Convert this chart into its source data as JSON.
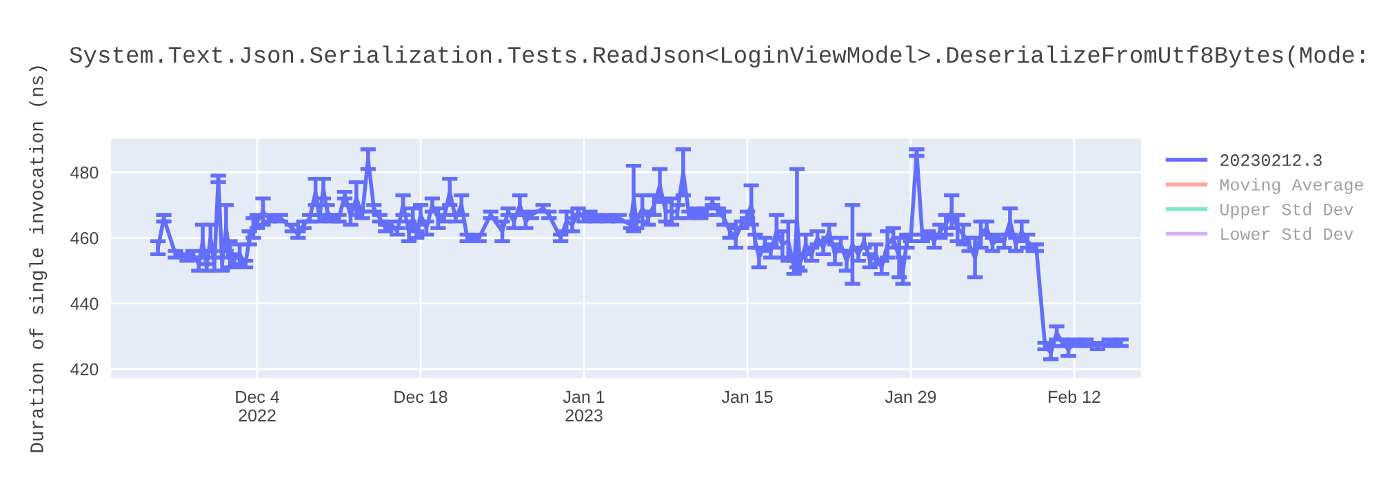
{
  "chart_data": {
    "type": "line",
    "title": "System.Text.Json.Serialization.Tests.ReadJson<LoginViewModel>.DeserializeFromUtf8Bytes(Mode:",
    "ylabel": "Duration of single invocation (ns)",
    "x": [
      "2022-11-25T12:00",
      "2022-11-26T00:00",
      "2022-11-27T00:00",
      "2022-11-28T00:00",
      "2022-11-28T12:00",
      "2022-11-29T00:00",
      "2022-11-29T08:00",
      "2022-11-29T16:00",
      "2022-11-30T00:00",
      "2022-11-30T08:00",
      "2022-11-30T16:00",
      "2022-12-01T00:00",
      "2022-12-01T08:00",
      "2022-12-01T16:00",
      "2022-12-02T00:00",
      "2022-12-02T12:00",
      "2022-12-03T00:00",
      "2022-12-03T08:00",
      "2022-12-03T16:00",
      "2022-12-04T00:00",
      "2022-12-04T12:00",
      "2022-12-05T00:00",
      "2022-12-06T00:00",
      "2022-12-07T00:00",
      "2022-12-07T12:00",
      "2022-12-08T00:00",
      "2022-12-08T12:00",
      "2022-12-09T00:00",
      "2022-12-09T08:00",
      "2022-12-09T16:00",
      "2022-12-10T00:00",
      "2022-12-10T12:00",
      "2022-12-11T00:00",
      "2022-12-11T12:00",
      "2022-12-12T00:00",
      "2022-12-12T12:00",
      "2022-12-13T00:00",
      "2022-12-13T12:00",
      "2022-12-14T00:00",
      "2022-12-14T12:00",
      "2022-12-15T00:00",
      "2022-12-15T12:00",
      "2022-12-16T00:00",
      "2022-12-16T12:00",
      "2022-12-17T00:00",
      "2022-12-17T08:00",
      "2022-12-17T16:00",
      "2022-12-18T00:00",
      "2022-12-18T12:00",
      "2022-12-19T00:00",
      "2022-12-19T12:00",
      "2022-12-20T00:00",
      "2022-12-20T12:00",
      "2022-12-21T00:00",
      "2022-12-21T12:00",
      "2022-12-22T00:00",
      "2022-12-23T00:00",
      "2022-12-24T00:00",
      "2022-12-25T00:00",
      "2022-12-25T12:00",
      "2022-12-26T00:00",
      "2022-12-26T12:00",
      "2022-12-27T00:00",
      "2022-12-27T12:00",
      "2022-12-28T12:00",
      "2022-12-29T00:00",
      "2022-12-30T00:00",
      "2022-12-30T12:00",
      "2022-12-31T00:00",
      "2022-12-31T12:00",
      "2023-01-01T00:00",
      "2023-01-01T12:00",
      "2023-01-02T00:00",
      "2023-01-03T00:00",
      "2023-01-04T00:00",
      "2023-01-05T00:00",
      "2023-01-05T06:00",
      "2023-01-05T12:00",
      "2023-01-06T00:00",
      "2023-01-06T12:00",
      "2023-01-07T00:00",
      "2023-01-07T12:00",
      "2023-01-08T00:00",
      "2023-01-08T12:00",
      "2023-01-09T00:00",
      "2023-01-09T12:00",
      "2023-01-10T00:00",
      "2023-01-10T12:00",
      "2023-01-11T00:00",
      "2023-01-11T12:00",
      "2023-01-12T00:00",
      "2023-01-12T12:00",
      "2023-01-13T00:00",
      "2023-01-13T12:00",
      "2023-01-14T00:00",
      "2023-01-14T12:00",
      "2023-01-15T00:00",
      "2023-01-15T08:00",
      "2023-01-15T16:00",
      "2023-01-16T00:00",
      "2023-01-16T12:00",
      "2023-01-17T00:00",
      "2023-01-17T12:00",
      "2023-01-18T00:00",
      "2023-01-18T12:00",
      "2023-01-19T00:00",
      "2023-01-19T06:00",
      "2023-01-19T12:00",
      "2023-01-20T00:00",
      "2023-01-20T12:00",
      "2023-01-21T00:00",
      "2023-01-21T12:00",
      "2023-01-22T00:00",
      "2023-01-22T12:00",
      "2023-01-23T00:00",
      "2023-01-23T12:00",
      "2023-01-24T00:00",
      "2023-01-24T12:00",
      "2023-01-25T00:00",
      "2023-01-25T12:00",
      "2023-01-26T00:00",
      "2023-01-26T12:00",
      "2023-01-27T00:00",
      "2023-01-27T12:00",
      "2023-01-28T00:00",
      "2023-01-28T08:00",
      "2023-01-28T16:00",
      "2023-01-29T00:00",
      "2023-01-29T12:00",
      "2023-01-30T00:00",
      "2023-01-30T12:00",
      "2023-01-31T00:00",
      "2023-01-31T12:00",
      "2023-02-01T00:00",
      "2023-02-01T12:00",
      "2023-02-02T00:00",
      "2023-02-02T12:00",
      "2023-02-03T00:00",
      "2023-02-03T12:00",
      "2023-02-04T00:00",
      "2023-02-04T12:00",
      "2023-02-05T00:00",
      "2023-02-05T12:00",
      "2023-02-06T00:00",
      "2023-02-06T12:00",
      "2023-02-07T00:00",
      "2023-02-07T12:00",
      "2023-02-08T00:00",
      "2023-02-08T12:00",
      "2023-02-08T18:00",
      "2023-02-09T12:00",
      "2023-02-10T00:00",
      "2023-02-10T12:00",
      "2023-02-11T00:00",
      "2023-02-11T12:00",
      "2023-02-12T00:00",
      "2023-02-13T00:00",
      "2023-02-14T00:00",
      "2023-02-15T00:00",
      "2023-02-16T00:00"
    ],
    "series": [
      {
        "name": "20230212.3",
        "color": "#636efa",
        "values": [
          457,
          466,
          455,
          454,
          455,
          452,
          459,
          451,
          460,
          452,
          478,
          452,
          463,
          455,
          453,
          455,
          452,
          460,
          463,
          465,
          468,
          466,
          466,
          463,
          461,
          464,
          466,
          474,
          466,
          475,
          468,
          466,
          466,
          473,
          467,
          472,
          467,
          484,
          469,
          466,
          463,
          464,
          462,
          470,
          462,
          466,
          461,
          467,
          463,
          470,
          466,
          466,
          474,
          466,
          470,
          460,
          460,
          467,
          462,
          468,
          465,
          470,
          465,
          467,
          469,
          467,
          460,
          465,
          464,
          468,
          466,
          467,
          466,
          466,
          466,
          464,
          472,
          465,
          469,
          466,
          470,
          476,
          468,
          468,
          468,
          480,
          467,
          468,
          467,
          468,
          471,
          468,
          466,
          462,
          460,
          464,
          467,
          470,
          459,
          454,
          458,
          456,
          462,
          458,
          459,
          451,
          466,
          452,
          458,
          455,
          460,
          457,
          462,
          455,
          458,
          453,
          458,
          455,
          459,
          453,
          455,
          451,
          458,
          460,
          454,
          450,
          459,
          460,
          486,
          460,
          461,
          459,
          462,
          464,
          468,
          463,
          461,
          458,
          454,
          461,
          463,
          458,
          460,
          459,
          465,
          458,
          462,
          459,
          457,
          457,
          427,
          425,
          431,
          428,
          426,
          428,
          428,
          427,
          428,
          428
        ],
        "errors": [
          2,
          1,
          1,
          1,
          1,
          2,
          5,
          1,
          4,
          2,
          1,
          2,
          7,
          4,
          2,
          3,
          1,
          2,
          3,
          2,
          4,
          1,
          1,
          1,
          1,
          1,
          1,
          4,
          1,
          3,
          2,
          1,
          1,
          1,
          3,
          5,
          1,
          3,
          1,
          1,
          1,
          1,
          1,
          3,
          3,
          3,
          1,
          3,
          2,
          2,
          3,
          1,
          4,
          1,
          3,
          1,
          1,
          1,
          3,
          1,
          2,
          3,
          2,
          1,
          1,
          1,
          1,
          3,
          2,
          1,
          1,
          1,
          1,
          1,
          1,
          1,
          10,
          2,
          4,
          2,
          3,
          5,
          3,
          4,
          2,
          7,
          1,
          1,
          1,
          1,
          1,
          1,
          2,
          2,
          3,
          1,
          1,
          6,
          2,
          3,
          2,
          2,
          5,
          4,
          6,
          2,
          15,
          2,
          3,
          2,
          2,
          2,
          2,
          3,
          2,
          3,
          12,
          2,
          2,
          2,
          3,
          2,
          4,
          3,
          6,
          4,
          2,
          1,
          1,
          1,
          1,
          2,
          2,
          3,
          5,
          4,
          3,
          2,
          6,
          4,
          2,
          2,
          1,
          2,
          4,
          2,
          3,
          2,
          1,
          1,
          1,
          2,
          2,
          1,
          2,
          1,
          1,
          1,
          1,
          1
        ]
      },
      {
        "name": "Moving Average",
        "color": "#ef553b",
        "values": [
          null,
          null,
          null,
          null,
          null,
          null,
          null,
          null,
          null,
          null,
          null,
          null,
          null,
          null,
          null,
          null,
          null,
          null,
          null,
          null,
          null,
          null,
          null,
          null,
          null,
          null,
          null,
          null,
          null,
          null,
          null,
          null,
          null,
          null,
          null,
          null,
          null,
          null,
          null,
          null,
          null,
          null,
          null,
          null,
          null,
          null,
          null,
          null,
          null,
          null,
          null,
          null,
          null,
          null,
          null,
          null,
          null,
          null,
          null,
          null,
          null,
          null,
          null,
          null,
          null,
          null,
          null,
          null,
          null,
          null,
          null,
          null,
          null,
          null,
          null,
          null,
          null,
          null,
          null,
          null,
          null,
          null,
          null,
          null,
          null,
          null,
          null,
          null,
          null,
          null,
          null,
          null,
          null,
          null,
          null,
          null,
          null,
          null,
          null,
          null,
          null,
          null,
          null,
          null,
          null,
          null,
          null,
          null,
          null,
          null,
          null,
          null,
          null,
          null,
          null,
          null,
          null,
          null,
          null,
          null,
          null,
          null,
          null,
          null,
          null,
          null,
          null,
          null,
          null,
          null,
          null,
          null,
          null,
          null,
          null,
          null,
          null,
          null,
          null,
          null,
          null,
          null,
          null,
          null,
          null,
          null,
          null,
          null,
          null,
          null,
          null,
          null,
          null,
          null,
          null,
          null,
          null,
          null,
          null,
          null
        ]
      },
      {
        "name": "Upper Std Dev",
        "color": "#00cc96",
        "values": [
          null,
          null,
          null,
          null,
          null,
          null,
          null,
          null,
          null,
          null,
          null,
          null,
          null,
          null,
          null,
          null,
          null,
          null,
          null,
          null,
          null,
          null,
          null,
          null,
          null,
          null,
          null,
          null,
          null,
          null,
          null,
          null,
          null,
          null,
          null,
          null,
          null,
          null,
          null,
          null,
          null,
          null,
          null,
          null,
          null,
          null,
          null,
          null,
          null,
          null,
          null,
          null,
          null,
          null,
          null,
          null,
          null,
          null,
          null,
          null,
          null,
          null,
          null,
          null,
          null,
          null,
          null,
          null,
          null,
          null,
          null,
          null,
          null,
          null,
          null,
          null,
          null,
          null,
          null,
          null,
          null,
          null,
          null,
          null,
          null,
          null,
          null,
          null,
          null,
          null,
          null,
          null,
          null,
          null,
          null,
          null,
          null,
          null,
          null,
          null,
          null,
          null,
          null,
          null,
          null,
          null,
          null,
          null,
          null,
          null,
          null,
          null,
          null,
          null,
          null,
          null,
          null,
          null,
          null,
          null,
          null,
          null,
          null,
          null,
          null,
          null,
          null,
          null,
          null,
          null,
          null,
          null,
          null,
          null,
          null,
          null,
          null,
          null,
          null,
          null,
          null,
          null,
          null,
          null,
          null,
          null,
          null,
          null,
          null,
          null,
          null,
          null,
          null,
          null,
          null,
          null,
          null,
          null,
          null,
          null
        ]
      },
      {
        "name": "Lower Std Dev",
        "color": "#ab63fa",
        "values": [
          null,
          null,
          null,
          null,
          null,
          null,
          null,
          null,
          null,
          null,
          null,
          null,
          null,
          null,
          null,
          null,
          null,
          null,
          null,
          null,
          null,
          null,
          null,
          null,
          null,
          null,
          null,
          null,
          null,
          null,
          null,
          null,
          null,
          null,
          null,
          null,
          null,
          null,
          null,
          null,
          null,
          null,
          null,
          null,
          null,
          null,
          null,
          null,
          null,
          null,
          null,
          null,
          null,
          null,
          null,
          null,
          null,
          null,
          null,
          null,
          null,
          null,
          null,
          null,
          null,
          null,
          null,
          null,
          null,
          null,
          null,
          null,
          null,
          null,
          null,
          null,
          null,
          null,
          null,
          null,
          null,
          null,
          null,
          null,
          null,
          null,
          null,
          null,
          null,
          null,
          null,
          null,
          null,
          null,
          null,
          null,
          null,
          null,
          null,
          null,
          null,
          null,
          null,
          null,
          null,
          null,
          null,
          null,
          null,
          null,
          null,
          null,
          null,
          null,
          null,
          null,
          null,
          null,
          null,
          null,
          null,
          null,
          null,
          null,
          null,
          null,
          null,
          null,
          null,
          null,
          null,
          null,
          null,
          null,
          null,
          null,
          null,
          null,
          null,
          null,
          null,
          null,
          null,
          null,
          null,
          null,
          null,
          null,
          null,
          null,
          null,
          null,
          null,
          null,
          null,
          null,
          null,
          null,
          null,
          null
        ]
      }
    ],
    "xlim": [
      "2022-11-21T10:00",
      "2023-02-17T19:00"
    ],
    "xticks": [
      {
        "value": "2022-12-04",
        "label": "Dec 4\n2022"
      },
      {
        "value": "2022-12-18",
        "label": "Dec 18"
      },
      {
        "value": "2023-01-01",
        "label": "Jan 1\n2023"
      },
      {
        "value": "2023-01-15",
        "label": "Jan 15"
      },
      {
        "value": "2023-01-29",
        "label": "Jan 29"
      },
      {
        "value": "2023-02-12",
        "label": "Feb 12"
      }
    ],
    "ylim": [
      417,
      490.5
    ],
    "yticks": [
      420,
      440,
      460,
      480
    ],
    "grid": true,
    "legend": "right",
    "marker": "none",
    "line_style": "solid"
  }
}
